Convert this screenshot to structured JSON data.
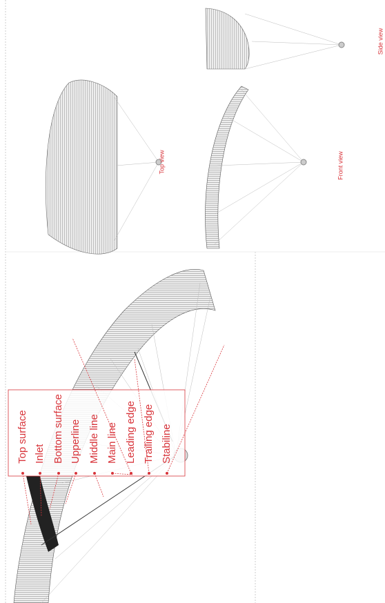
{
  "labels": [
    "Top surface",
    "Inlet",
    "Bottom surface",
    "Upperline",
    "Middle line",
    "Main line",
    "Leading edge",
    "Trailing edge",
    "Stabiline"
  ],
  "views": [
    "Top view",
    "Front view",
    "Side view"
  ]
}
